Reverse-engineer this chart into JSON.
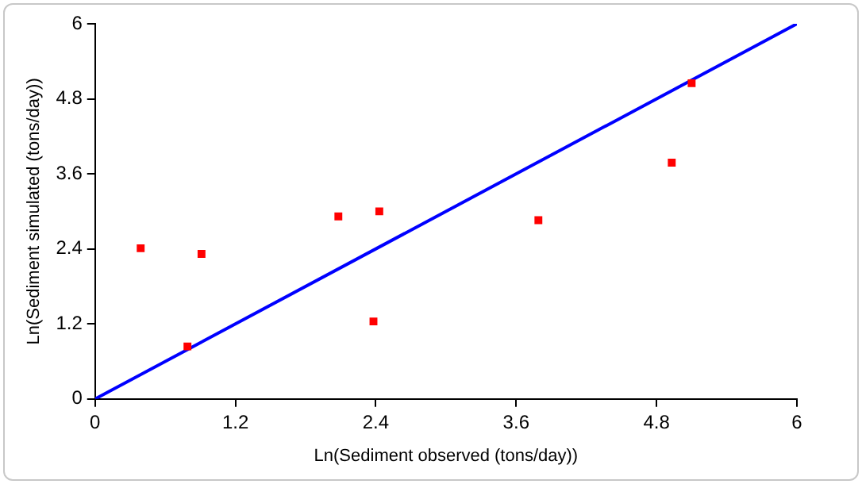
{
  "chart_data": {
    "type": "scatter",
    "xlabel": "Ln(Sediment observed (tons/day))",
    "ylabel": "Ln(Sediment simulated (tons/day))",
    "marker": "square",
    "grid": false,
    "legend": false,
    "xlim": [
      0,
      6
    ],
    "ylim": [
      0,
      6
    ],
    "xticks": [
      0,
      1.2,
      2.4,
      3.6,
      4.8,
      6
    ],
    "yticks": [
      0,
      1.2,
      2.4,
      3.6,
      4.8,
      6
    ],
    "series": [
      {
        "color": "#ff0000",
        "x": [
          0.39,
          0.91,
          0.79,
          2.08,
          2.43,
          2.38,
          3.79,
          4.93,
          5.1
        ],
        "values": [
          2.41,
          2.32,
          0.84,
          2.92,
          3.0,
          1.24,
          2.86,
          3.78,
          5.05
        ]
      },
      {
        "type": "line",
        "color": "#0000ff",
        "x": [
          0,
          6
        ],
        "values": [
          0,
          6
        ],
        "line_style": "solid",
        "marker": "none"
      }
    ]
  }
}
